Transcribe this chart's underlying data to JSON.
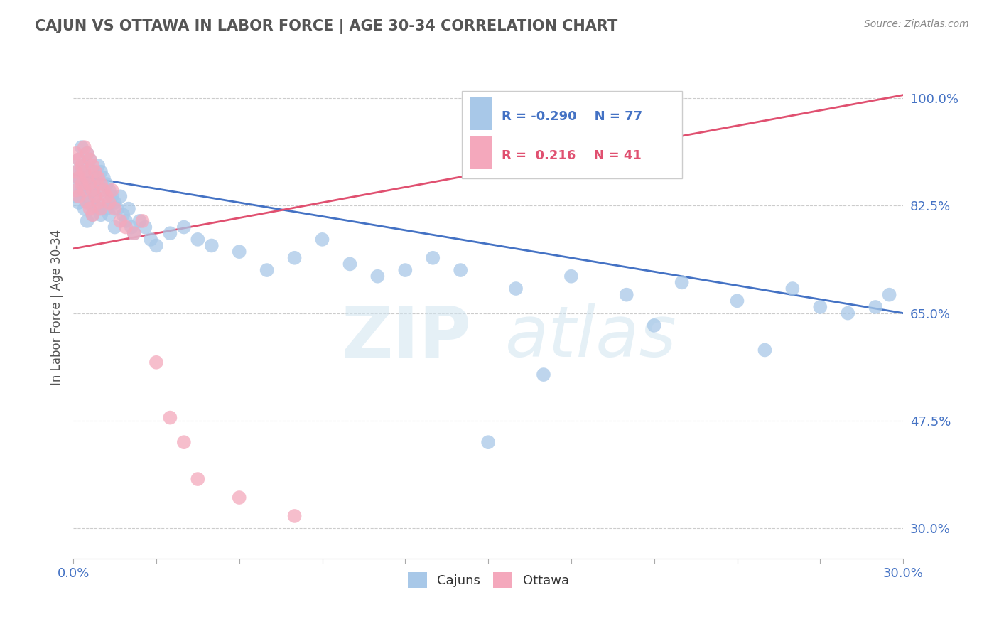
{
  "title": "CAJUN VS OTTAWA IN LABOR FORCE | AGE 30-34 CORRELATION CHART",
  "source": "Source: ZipAtlas.com",
  "ylabel": "In Labor Force | Age 30-34",
  "y_ticks": [
    0.3,
    0.475,
    0.65,
    0.825,
    1.0
  ],
  "y_tick_labels": [
    "30.0%",
    "47.5%",
    "65.0%",
    "82.5%",
    "100.0%"
  ],
  "xlim": [
    0.0,
    0.3
  ],
  "ylim": [
    0.25,
    1.07
  ],
  "cajun_R": -0.29,
  "cajun_N": 77,
  "ottawa_R": 0.216,
  "ottawa_N": 41,
  "cajun_color": "#A8C8E8",
  "ottawa_color": "#F4A8BC",
  "cajun_line_color": "#4472C4",
  "ottawa_line_color": "#E05070",
  "watermark_zip": "ZIP",
  "watermark_atlas": "atlas",
  "background_color": "#ffffff",
  "grid_color": "#cccccc",
  "legend_cajun": "Cajuns",
  "legend_ottawa": "Ottawa",
  "cajun_line_x0": 0.0,
  "cajun_line_y0": 0.875,
  "cajun_line_x1": 0.3,
  "cajun_line_y1": 0.65,
  "ottawa_line_x0": 0.0,
  "ottawa_line_y0": 0.755,
  "ottawa_line_x1": 0.3,
  "ottawa_line_y1": 1.005,
  "cajun_scatter_x": [
    0.001,
    0.001,
    0.001,
    0.002,
    0.002,
    0.002,
    0.003,
    0.003,
    0.003,
    0.004,
    0.004,
    0.004,
    0.005,
    0.005,
    0.005,
    0.005,
    0.006,
    0.006,
    0.006,
    0.007,
    0.007,
    0.007,
    0.008,
    0.008,
    0.009,
    0.009,
    0.009,
    0.01,
    0.01,
    0.01,
    0.011,
    0.011,
    0.012,
    0.012,
    0.013,
    0.013,
    0.014,
    0.015,
    0.015,
    0.016,
    0.017,
    0.018,
    0.019,
    0.02,
    0.021,
    0.022,
    0.024,
    0.026,
    0.028,
    0.03,
    0.035,
    0.04,
    0.045,
    0.05,
    0.06,
    0.07,
    0.08,
    0.09,
    0.1,
    0.11,
    0.12,
    0.13,
    0.14,
    0.16,
    0.18,
    0.2,
    0.22,
    0.24,
    0.26,
    0.27,
    0.28,
    0.29,
    0.295,
    0.25,
    0.21,
    0.17,
    0.15
  ],
  "cajun_scatter_y": [
    0.88,
    0.86,
    0.84,
    0.9,
    0.87,
    0.83,
    0.92,
    0.88,
    0.85,
    0.89,
    0.86,
    0.82,
    0.91,
    0.87,
    0.84,
    0.8,
    0.9,
    0.86,
    0.83,
    0.88,
    0.85,
    0.81,
    0.87,
    0.84,
    0.89,
    0.86,
    0.82,
    0.88,
    0.85,
    0.81,
    0.87,
    0.83,
    0.86,
    0.82,
    0.85,
    0.81,
    0.84,
    0.83,
    0.79,
    0.82,
    0.84,
    0.81,
    0.8,
    0.82,
    0.79,
    0.78,
    0.8,
    0.79,
    0.77,
    0.76,
    0.78,
    0.79,
    0.77,
    0.76,
    0.75,
    0.72,
    0.74,
    0.77,
    0.73,
    0.71,
    0.72,
    0.74,
    0.72,
    0.69,
    0.71,
    0.68,
    0.7,
    0.67,
    0.69,
    0.66,
    0.65,
    0.66,
    0.68,
    0.59,
    0.63,
    0.55,
    0.44
  ],
  "ottawa_scatter_x": [
    0.001,
    0.001,
    0.001,
    0.002,
    0.002,
    0.002,
    0.003,
    0.003,
    0.004,
    0.004,
    0.004,
    0.005,
    0.005,
    0.005,
    0.006,
    0.006,
    0.006,
    0.007,
    0.007,
    0.007,
    0.008,
    0.008,
    0.009,
    0.009,
    0.01,
    0.01,
    0.011,
    0.012,
    0.013,
    0.014,
    0.015,
    0.017,
    0.019,
    0.022,
    0.025,
    0.03,
    0.035,
    0.04,
    0.045,
    0.06,
    0.08
  ],
  "ottawa_scatter_y": [
    0.91,
    0.88,
    0.85,
    0.9,
    0.87,
    0.84,
    0.89,
    0.86,
    0.92,
    0.88,
    0.85,
    0.91,
    0.87,
    0.83,
    0.9,
    0.86,
    0.82,
    0.89,
    0.85,
    0.81,
    0.88,
    0.84,
    0.87,
    0.83,
    0.86,
    0.82,
    0.85,
    0.84,
    0.83,
    0.85,
    0.82,
    0.8,
    0.79,
    0.78,
    0.8,
    0.57,
    0.48,
    0.44,
    0.38,
    0.35,
    0.32
  ]
}
